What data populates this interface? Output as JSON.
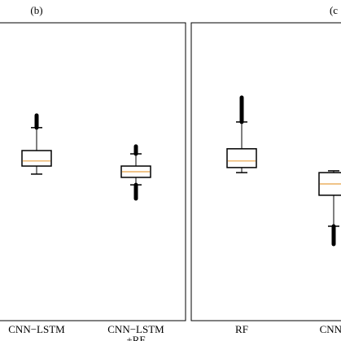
{
  "chart_data": [
    {
      "type": "box",
      "title": "(b)",
      "categories": [
        [
          "CNN−LSTM"
        ],
        [
          "CNN−LSTM",
          "+RF"
        ]
      ],
      "ylim": [
        0,
        100
      ],
      "boxes": [
        {
          "whisker_low": 49.2,
          "q1": 51.9,
          "median": 53.6,
          "q3": 57.1,
          "whisker_high": 64.8,
          "outliers": [
            68.9
          ]
        },
        {
          "whisker_low": 45.6,
          "q1": 48.1,
          "median": 50.0,
          "q3": 51.9,
          "whisker_high": 56.0,
          "outliers": [
            58.5,
            41.0
          ]
        }
      ],
      "box_color": "#000000",
      "median_color": "#e8a040"
    },
    {
      "type": "box",
      "title": "(c",
      "categories": [
        [
          "RF"
        ],
        [
          "CNN−"
        ]
      ],
      "ylim": [
        0,
        100
      ],
      "boxes": [
        {
          "whisker_low": 49.7,
          "q1": 51.4,
          "median": 53.6,
          "q3": 57.7,
          "whisker_high": 66.7,
          "outliers": [
            74.9
          ]
        },
        {
          "whisker_low": 31.7,
          "q1": 42.1,
          "median": 45.9,
          "q3": 49.7,
          "whisker_high": 50.3,
          "outliers": [
            25.7
          ]
        }
      ],
      "box_color": "#000000",
      "median_color": "#e8a040"
    }
  ]
}
